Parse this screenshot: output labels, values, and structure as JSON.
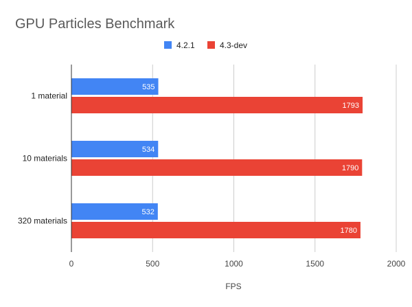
{
  "chart_data": {
    "type": "bar",
    "orientation": "horizontal",
    "title": "GPU Particles Benchmark",
    "xlabel": "FPS",
    "ylabel": "",
    "categories": [
      "1 material",
      "10 materials",
      "320 materials"
    ],
    "series": [
      {
        "name": "4.2.1",
        "color": "#4285f4",
        "values": [
          535,
          534,
          532
        ]
      },
      {
        "name": "4.3-dev",
        "color": "#ea4335",
        "values": [
          1793,
          1790,
          1780
        ]
      }
    ],
    "xlim": [
      0,
      2000
    ],
    "xticks": [
      0,
      500,
      1000,
      1500,
      2000
    ],
    "grid": true,
    "legend_position": "top-center",
    "data_labels": true
  }
}
